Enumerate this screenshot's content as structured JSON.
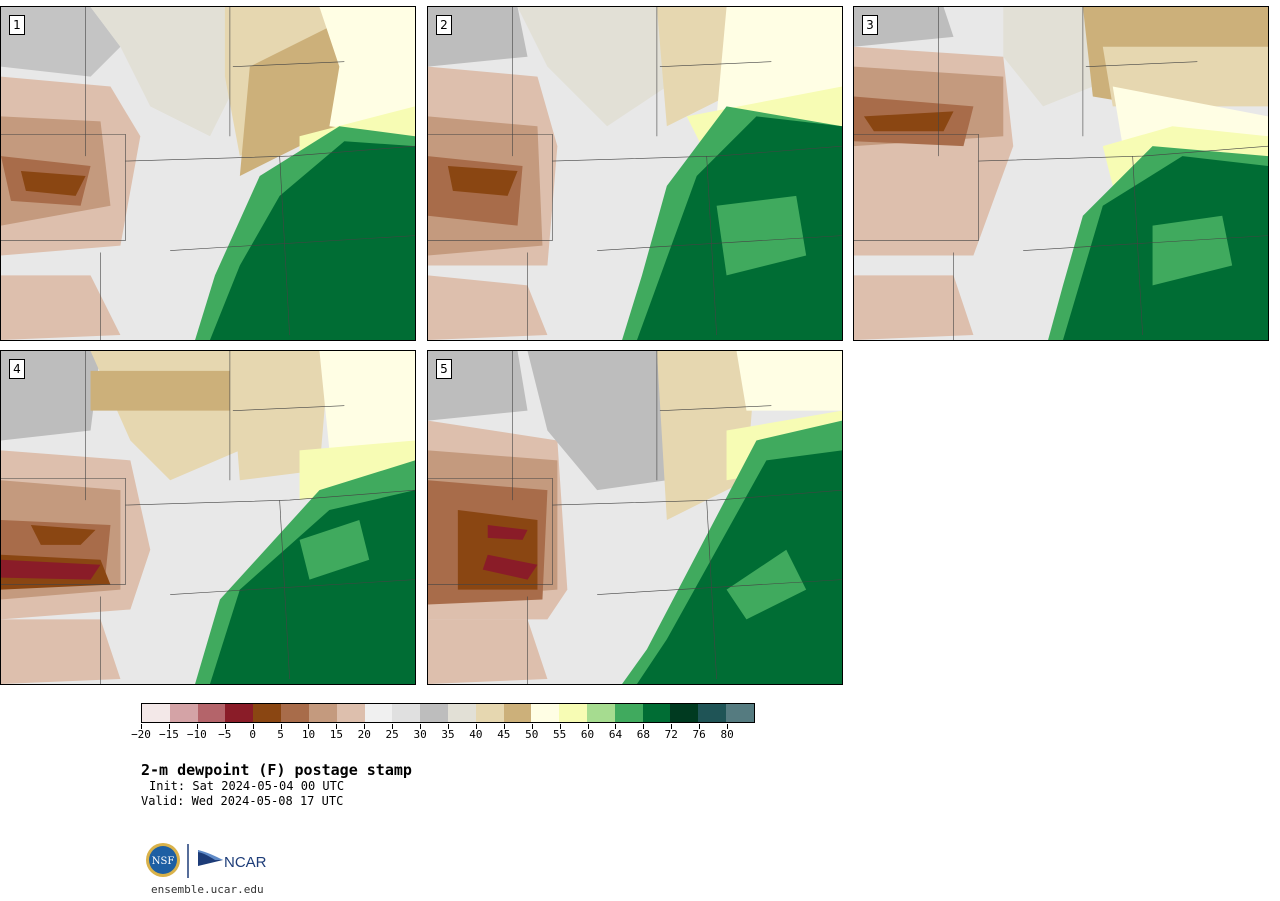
{
  "panels": [
    {
      "label": "1"
    },
    {
      "label": "2"
    },
    {
      "label": "3"
    },
    {
      "label": "4"
    },
    {
      "label": "5"
    }
  ],
  "colorbar": {
    "colors": [
      "#f3e8e8",
      "#d4a3a6",
      "#b4646a",
      "#8a1c28",
      "#8a4612",
      "#a86c4a",
      "#c49a7e",
      "#ddbfad",
      "#f0f0f0",
      "#e0e0e0",
      "#bdbdbd",
      "#e2e0d6",
      "#e6d7b0",
      "#ccb07a",
      "#fffee4",
      "#f7fcb4",
      "#a6dc90",
      "#40aa5e",
      "#006d34",
      "#003a20",
      "#1f5456",
      "#557b80"
    ],
    "ticks": [
      "−20",
      "−15",
      "−10",
      "−5",
      "0",
      "5",
      "10",
      "15",
      "20",
      "25",
      "30",
      "35",
      "40",
      "45",
      "50",
      "55",
      "60",
      "64",
      "68",
      "72",
      "76",
      "80"
    ]
  },
  "title": "2-m dewpoint (F) postage stamp",
  "init": "Init: Sat 2024-05-04 00 UTC",
  "valid": "Valid: Wed 2024-05-08 17 UTC",
  "site": "ensemble.ucar.edu",
  "logo_text": "NCAR",
  "nsf_text": "NSF"
}
